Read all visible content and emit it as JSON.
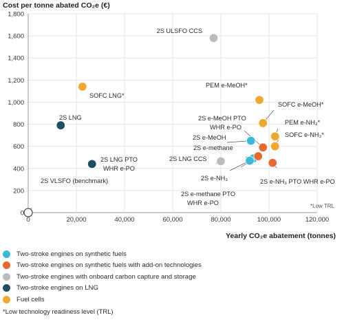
{
  "chart_data": {
    "type": "scatter",
    "ylabel": "Cost per tonne abated CO₂e (€)",
    "xlabel": "Yearly CO₂e abatement (tonnes)",
    "xlim": [
      0,
      120000
    ],
    "ylim": [
      0,
      1800
    ],
    "x_ticks": [
      0,
      20000,
      40000,
      60000,
      80000,
      100000,
      120000
    ],
    "x_tick_labels": [
      "0",
      "20,000",
      "40,000",
      "60,000",
      "80,000",
      "100,000",
      "120,000"
    ],
    "y_ticks": [
      0,
      200,
      400,
      600,
      800,
      1000,
      1200,
      1400,
      1600,
      1800
    ],
    "y_tick_labels": [
      "0",
      "200",
      "400",
      "600",
      "800",
      "1,000",
      "1,200",
      "1,400",
      "1,600",
      "1,800"
    ],
    "grid": true,
    "note": "*Low TRL",
    "series": [
      {
        "name": "Two-stroke engines on synthetic fuels",
        "color": "#3cb8d8",
        "points": [
          {
            "label": "2S e-MeOH",
            "x": 92500,
            "y": 650
          },
          {
            "label": "2S e-methane",
            "x": 93500,
            "y": 490
          },
          {
            "label": "2S e-NH₃",
            "x": 92000,
            "y": 470
          }
        ]
      },
      {
        "name": "Two-stroke engines on synthetic fuels with add-on technologies",
        "color": "#e8692f",
        "points": [
          {
            "label": "2S e-MeOH PTO WHR e-PO",
            "x": 97500,
            "y": 590
          },
          {
            "label": "2S e-methane PTO WHR e-PO",
            "x": 95500,
            "y": 510
          },
          {
            "label": "2S e-NH₃ PTO WHR e-PO",
            "x": 101500,
            "y": 450
          }
        ]
      },
      {
        "name": "Two-stroke engines with onboard carbon capture and storage",
        "color": "#bcbcbc",
        "points": [
          {
            "label": "2S ULSFO CCS",
            "x": 77000,
            "y": 1580
          },
          {
            "label": "2S LNG CCS",
            "x": 80000,
            "y": 465
          }
        ]
      },
      {
        "name": "Two-stroke engines on LNG",
        "color": "#1f4e63",
        "points": [
          {
            "label": "2S LNG",
            "x": 13500,
            "y": 790
          },
          {
            "label": "2S LNG PTO WHR e-PO",
            "x": 26500,
            "y": 440
          }
        ]
      },
      {
        "name": "Fuel cells",
        "color": "#f0a830",
        "points": [
          {
            "label": "SOFC LNG*",
            "x": 22500,
            "y": 1140
          },
          {
            "label": "PEM e-MeOH*",
            "x": 96000,
            "y": 1020
          },
          {
            "label": "SOFC e-MeOH*",
            "x": 97500,
            "y": 810
          },
          {
            "label": "PEM e-NH₃*",
            "x": 102500,
            "y": 690
          },
          {
            "label": "SOFC e-NH₃*",
            "x": 102500,
            "y": 600
          }
        ]
      },
      {
        "name": "",
        "color": "#ffffff",
        "points": [
          {
            "label": "2S VLSFO (benchmark)",
            "x": 0,
            "y": 0
          }
        ]
      }
    ]
  },
  "legend": {
    "items": [
      {
        "label": "Two-stroke engines on synthetic fuels",
        "color": "#3cb8d8"
      },
      {
        "label": "Two-stroke engines on synthetic fuels with add-on technologies",
        "color": "#e8692f"
      },
      {
        "label": "Two-stroke engines with onboard carbon capture and storage",
        "color": "#bcbcbc"
      },
      {
        "label": "Two-stroke engines on LNG",
        "color": "#1f4e63"
      },
      {
        "label": "Fuel cells",
        "color": "#f0a830"
      }
    ],
    "footnote": "*Low technology readiness level (TRL)"
  }
}
